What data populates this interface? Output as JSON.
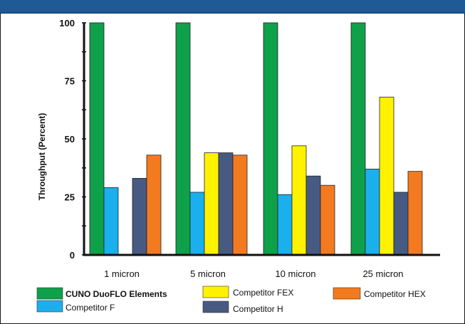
{
  "colors": {
    "header": "#1f5a94",
    "cuno": "#0fa04a",
    "competitor_f": "#1ab0ee",
    "competitor_fex": "#fff200",
    "competitor_h": "#475a82",
    "competitor_hex": "#f47a20",
    "axis": "#111111"
  },
  "chart_data": {
    "type": "bar",
    "title": "",
    "xlabel": "",
    "ylabel": "Throughput (Percent)",
    "ylim": [
      0,
      100
    ],
    "yticks": [
      0,
      25,
      50,
      75,
      100
    ],
    "categories": [
      "1 micron",
      "5 micron",
      "10 micron",
      "25 micron"
    ],
    "series": [
      {
        "name": "CUNO DuoFLO Elements",
        "color_key": "cuno",
        "values": [
          100,
          100,
          100,
          100
        ]
      },
      {
        "name": "Competitor F",
        "color_key": "competitor_f",
        "values": [
          29,
          27,
          26,
          37
        ]
      },
      {
        "name": "Competitor FEX",
        "color_key": "competitor_fex",
        "values": [
          null,
          44,
          47,
          68
        ]
      },
      {
        "name": "Competitor H",
        "color_key": "competitor_h",
        "values": [
          33,
          44,
          34,
          27
        ]
      },
      {
        "name": "Competitor HEX",
        "color_key": "competitor_hex",
        "values": [
          43,
          43,
          30,
          36
        ]
      }
    ],
    "legend": [
      {
        "label": "CUNO DuoFLO Elements",
        "color_key": "cuno",
        "bold": true
      },
      {
        "label": "Competitor F",
        "color_key": "competitor_f",
        "bold": false
      },
      {
        "label": "Competitor FEX",
        "color_key": "competitor_fex",
        "bold": false
      },
      {
        "label": "Competitor H",
        "color_key": "competitor_h",
        "bold": false
      },
      {
        "label": "Competitor HEX",
        "color_key": "competitor_hex",
        "bold": false
      }
    ],
    "legend_position": "bottom",
    "grid": false
  }
}
